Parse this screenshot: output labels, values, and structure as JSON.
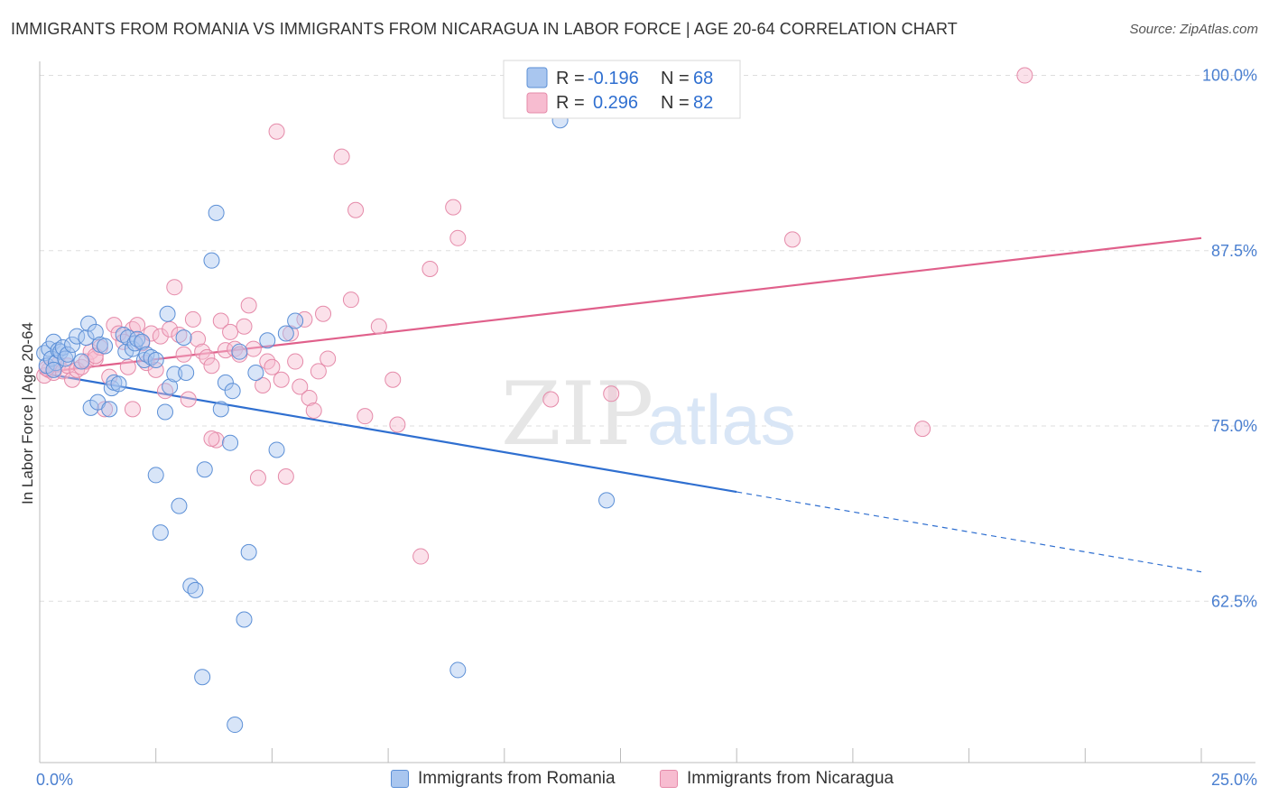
{
  "header": {
    "title": "IMMIGRANTS FROM ROMANIA VS IMMIGRANTS FROM NICARAGUA IN LABOR FORCE | AGE 20-64 CORRELATION CHART",
    "source": "Source: ZipAtlas.com"
  },
  "watermark": {
    "zip": "ZIP",
    "atlas": "atlas"
  },
  "legend": {
    "romania": {
      "r_label": "R =",
      "r_value": "-0.196",
      "n_label": "N =",
      "n_value": "68"
    },
    "nicaragua": {
      "r_label": "R =",
      "r_value": "0.296",
      "n_label": "N =",
      "n_value": "82"
    }
  },
  "bottom_legend": {
    "romania": "Immigrants from Romania",
    "nicaragua": "Immigrants from Nicaragua"
  },
  "colors": {
    "romania_fill": "#a9c6ef",
    "romania_stroke": "#5b8fd6",
    "romania_line": "#2f6fd0",
    "nicaragua_fill": "#f7bcd0",
    "nicaragua_stroke": "#e58aa9",
    "nicaragua_line": "#e0608b",
    "tick_label": "#4a7fd0",
    "grid": "#dddddd"
  },
  "chart_data": {
    "type": "scatter",
    "title": "IMMIGRANTS FROM ROMANIA VS IMMIGRANTS FROM NICARAGUA IN LABOR FORCE | AGE 20-64 CORRELATION CHART",
    "xlabel": "",
    "ylabel": "In Labor Force | Age 20-64",
    "xlim": [
      0,
      25
    ],
    "ylim": [
      51,
      101
    ],
    "x_tick_labels": [
      "0.0%",
      "25.0%"
    ],
    "y_ticks": [
      62.5,
      75.0,
      87.5,
      100.0
    ],
    "y_tick_labels": [
      "62.5%",
      "75.0%",
      "87.5%",
      "100.0%"
    ],
    "grid": true,
    "legend_position": "top-center",
    "series": [
      {
        "name": "Immigrants from Romania",
        "r": -0.196,
        "n": 68,
        "trend": {
          "x": [
            0,
            15
          ],
          "y": [
            78.8,
            70.3
          ],
          "dashed_to": [
            25,
            64.6
          ]
        },
        "points": [
          [
            0.1,
            80.2
          ],
          [
            0.15,
            79.3
          ],
          [
            0.2,
            80.5
          ],
          [
            0.25,
            79.8
          ],
          [
            0.3,
            81.0
          ],
          [
            0.35,
            79.5
          ],
          [
            0.4,
            80.4
          ],
          [
            0.45,
            80.3
          ],
          [
            0.5,
            80.6
          ],
          [
            0.55,
            79.8
          ],
          [
            0.6,
            80.1
          ],
          [
            0.7,
            80.8
          ],
          [
            0.8,
            81.4
          ],
          [
            0.9,
            79.6
          ],
          [
            1.0,
            81.3
          ],
          [
            1.05,
            82.3
          ],
          [
            1.1,
            76.3
          ],
          [
            1.2,
            81.7
          ],
          [
            1.25,
            76.7
          ],
          [
            1.3,
            80.8
          ],
          [
            1.4,
            80.7
          ],
          [
            1.5,
            76.2
          ],
          [
            1.55,
            77.7
          ],
          [
            1.6,
            78.1
          ],
          [
            1.7,
            78.0
          ],
          [
            1.8,
            81.5
          ],
          [
            1.85,
            80.3
          ],
          [
            1.9,
            81.3
          ],
          [
            2.0,
            80.5
          ],
          [
            2.05,
            80.9
          ],
          [
            2.1,
            81.2
          ],
          [
            2.2,
            81.0
          ],
          [
            2.25,
            79.7
          ],
          [
            2.3,
            80.1
          ],
          [
            2.4,
            79.9
          ],
          [
            2.5,
            79.7
          ],
          [
            2.5,
            71.5
          ],
          [
            2.6,
            67.4
          ],
          [
            2.7,
            76.0
          ],
          [
            2.75,
            83.0
          ],
          [
            2.8,
            77.8
          ],
          [
            2.9,
            78.7
          ],
          [
            3.0,
            69.3
          ],
          [
            3.1,
            81.3
          ],
          [
            3.15,
            78.8
          ],
          [
            3.25,
            63.6
          ],
          [
            3.35,
            63.3
          ],
          [
            3.5,
            57.1
          ],
          [
            3.55,
            71.9
          ],
          [
            3.7,
            86.8
          ],
          [
            3.8,
            90.2
          ],
          [
            3.9,
            76.2
          ],
          [
            4.0,
            78.1
          ],
          [
            4.1,
            73.8
          ],
          [
            4.15,
            77.5
          ],
          [
            4.2,
            53.7
          ],
          [
            4.3,
            80.3
          ],
          [
            4.4,
            61.2
          ],
          [
            4.5,
            66.0
          ],
          [
            4.65,
            78.8
          ],
          [
            4.9,
            81.1
          ],
          [
            5.1,
            73.3
          ],
          [
            5.3,
            81.6
          ],
          [
            5.5,
            82.5
          ],
          [
            9.0,
            57.6
          ],
          [
            11.2,
            96.8
          ],
          [
            12.2,
            69.7
          ],
          [
            0.3,
            79.0
          ]
        ]
      },
      {
        "name": "Immigrants from Nicaragua",
        "r": 0.296,
        "n": 82,
        "trend": {
          "x": [
            0,
            25
          ],
          "y": [
            78.8,
            88.4
          ]
        },
        "points": [
          [
            0.1,
            78.6
          ],
          [
            0.2,
            79.0
          ],
          [
            0.3,
            78.8
          ],
          [
            0.4,
            79.4
          ],
          [
            0.5,
            78.9
          ],
          [
            0.6,
            79.3
          ],
          [
            0.7,
            78.3
          ],
          [
            0.8,
            79.0
          ],
          [
            0.9,
            79.2
          ],
          [
            1.0,
            79.6
          ],
          [
            1.1,
            80.3
          ],
          [
            1.2,
            79.8
          ],
          [
            1.3,
            80.6
          ],
          [
            1.4,
            76.2
          ],
          [
            1.5,
            78.5
          ],
          [
            1.6,
            82.2
          ],
          [
            1.7,
            81.6
          ],
          [
            1.8,
            81.0
          ],
          [
            1.9,
            79.2
          ],
          [
            2.0,
            81.9
          ],
          [
            2.1,
            82.2
          ],
          [
            2.2,
            80.9
          ],
          [
            2.3,
            79.5
          ],
          [
            2.4,
            81.6
          ],
          [
            2.5,
            79.0
          ],
          [
            2.6,
            81.4
          ],
          [
            2.7,
            77.5
          ],
          [
            2.8,
            81.9
          ],
          [
            2.9,
            84.9
          ],
          [
            3.0,
            81.5
          ],
          [
            3.1,
            80.1
          ],
          [
            3.2,
            76.9
          ],
          [
            3.3,
            82.6
          ],
          [
            3.4,
            81.2
          ],
          [
            3.5,
            80.3
          ],
          [
            3.6,
            79.9
          ],
          [
            3.7,
            79.3
          ],
          [
            3.8,
            74.0
          ],
          [
            3.9,
            82.5
          ],
          [
            4.0,
            80.4
          ],
          [
            4.1,
            81.7
          ],
          [
            4.2,
            80.5
          ],
          [
            4.3,
            80.1
          ],
          [
            4.4,
            82.1
          ],
          [
            4.5,
            83.6
          ],
          [
            4.6,
            80.5
          ],
          [
            4.7,
            71.3
          ],
          [
            4.8,
            77.9
          ],
          [
            4.9,
            79.6
          ],
          [
            5.0,
            79.2
          ],
          [
            5.1,
            96.0
          ],
          [
            5.2,
            78.3
          ],
          [
            5.3,
            71.4
          ],
          [
            5.4,
            81.6
          ],
          [
            5.5,
            79.6
          ],
          [
            5.6,
            77.8
          ],
          [
            5.7,
            82.6
          ],
          [
            5.8,
            77.0
          ],
          [
            5.9,
            76.1
          ],
          [
            6.0,
            78.9
          ],
          [
            6.1,
            83.0
          ],
          [
            6.2,
            79.8
          ],
          [
            6.5,
            94.2
          ],
          [
            6.7,
            84.0
          ],
          [
            6.8,
            90.4
          ],
          [
            7.0,
            75.7
          ],
          [
            7.3,
            82.1
          ],
          [
            7.6,
            78.3
          ],
          [
            7.7,
            75.1
          ],
          [
            8.2,
            65.7
          ],
          [
            8.4,
            86.2
          ],
          [
            8.9,
            90.6
          ],
          [
            9.0,
            88.4
          ],
          [
            11.0,
            76.9
          ],
          [
            12.3,
            77.3
          ],
          [
            16.2,
            88.3
          ],
          [
            19.0,
            74.8
          ],
          [
            21.2,
            100.0
          ],
          [
            0.15,
            79.1
          ],
          [
            3.7,
            74.1
          ],
          [
            2.0,
            76.2
          ],
          [
            1.2,
            80.0
          ]
        ]
      }
    ]
  }
}
